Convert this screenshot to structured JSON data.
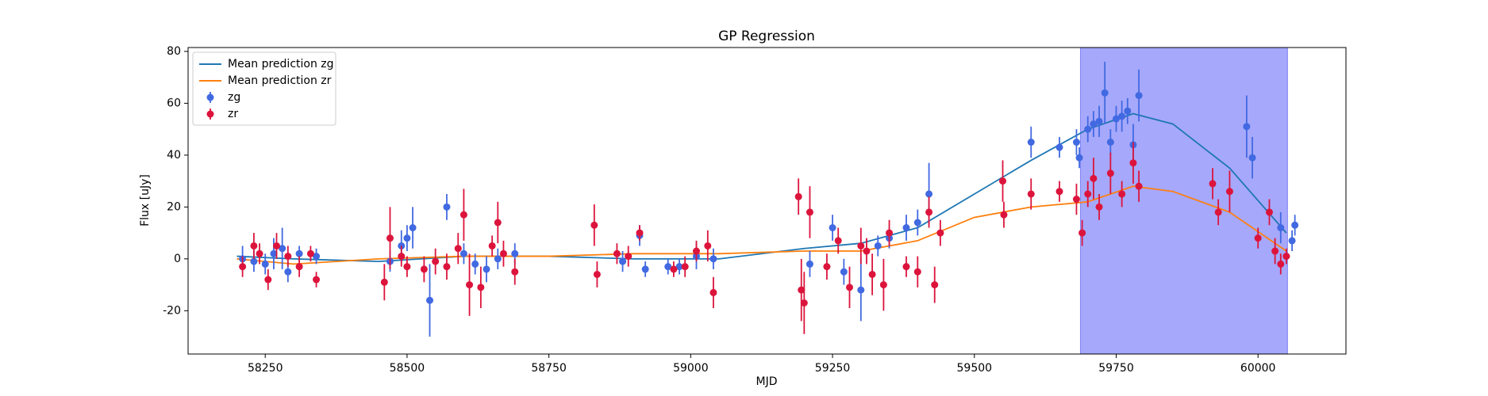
{
  "chart_data": {
    "type": "line",
    "title": "GP Regression",
    "x_label": "MJD",
    "y_label": "Flux [uJy]",
    "xlim": [
      58114,
      60155
    ],
    "ylim": [
      -36.7,
      81.5
    ],
    "xticks": [
      58250,
      58500,
      58750,
      59000,
      59250,
      59500,
      59750,
      60000
    ],
    "yticks": [
      -20,
      0,
      20,
      40,
      60,
      80
    ],
    "grid": false,
    "legend": "upper left",
    "shaded_span": {
      "x": [
        59687,
        60052
      ],
      "color": "#a6a8fb"
    },
    "series": [
      {
        "name": "Mean prediction zg",
        "type": "line",
        "color": "#1f77b4",
        "x": [
          58200,
          58300,
          58450,
          58600,
          58750,
          58900,
          59050,
          59200,
          59300,
          59400,
          59500,
          59600,
          59700,
          59780,
          59850,
          59950,
          60050
        ],
        "values": [
          1,
          0,
          -1,
          1,
          1,
          0,
          0,
          4,
          6,
          12,
          25,
          38,
          50,
          56,
          52,
          35,
          10
        ]
      },
      {
        "name": "Mean prediction zr",
        "type": "line",
        "color": "#ff7f0e",
        "x": [
          58200,
          58300,
          58450,
          58600,
          58750,
          58900,
          59050,
          59200,
          59300,
          59400,
          59500,
          59600,
          59700,
          59780,
          59850,
          59950,
          60050
        ],
        "values": [
          0,
          -2,
          0,
          1,
          1,
          2,
          2,
          3,
          3,
          7,
          16,
          20,
          22,
          28,
          26,
          18,
          3
        ]
      },
      {
        "name": "zg",
        "type": "scatter",
        "color": "#4169e1",
        "x": [
          58210,
          58230,
          58250,
          58265,
          58280,
          58290,
          58310,
          58340,
          58470,
          58490,
          58500,
          58510,
          58540,
          58570,
          58600,
          58620,
          58640,
          58660,
          58690,
          58880,
          58910,
          58920,
          58960,
          58980,
          59010,
          59040,
          59210,
          59250,
          59270,
          59300,
          59330,
          59350,
          59380,
          59400,
          59420,
          59600,
          59650,
          59680,
          59685,
          59700,
          59710,
          59720,
          59730,
          59740,
          59750,
          59760,
          59770,
          59780,
          59790,
          59980,
          59990,
          60040,
          60060,
          60065
        ],
        "values": [
          0,
          -1,
          -2,
          2,
          4,
          -5,
          2,
          1,
          -1,
          5,
          8,
          12,
          -16,
          20,
          2,
          -2,
          -4,
          0,
          2,
          -1,
          9,
          -4,
          -3,
          -3,
          1,
          0,
          -2,
          12,
          -5,
          -12,
          5,
          8,
          12,
          14,
          25,
          45,
          43,
          45,
          39,
          50,
          52,
          53,
          64,
          45,
          54,
          55,
          57,
          44,
          63,
          51,
          39,
          12,
          7,
          13
        ],
        "errors": [
          5,
          4,
          4,
          6,
          8,
          4,
          3,
          3,
          4,
          6,
          5,
          8,
          14,
          5,
          4,
          4,
          5,
          4,
          4,
          4,
          4,
          3,
          3,
          3,
          5,
          4,
          5,
          5,
          5,
          12,
          4,
          4,
          5,
          5,
          12,
          6,
          4,
          5,
          4,
          5,
          5,
          6,
          12,
          5,
          5,
          6,
          5,
          8,
          10,
          12,
          8,
          6,
          4,
          4
        ]
      },
      {
        "name": "zr",
        "type": "scatter",
        "color": "#dc143c",
        "x": [
          58210,
          58230,
          58240,
          58255,
          58270,
          58290,
          58310,
          58330,
          58340,
          58460,
          58470,
          58490,
          58500,
          58530,
          58550,
          58570,
          58590,
          58600,
          58610,
          58630,
          58650,
          58660,
          58670,
          58690,
          58830,
          58835,
          58870,
          58890,
          58910,
          58970,
          58990,
          59010,
          59030,
          59040,
          59190,
          59195,
          59200,
          59210,
          59240,
          59260,
          59280,
          59300,
          59310,
          59320,
          59340,
          59350,
          59380,
          59400,
          59420,
          59430,
          59440,
          59550,
          59552,
          59600,
          59650,
          59680,
          59690,
          59700,
          59710,
          59720,
          59740,
          59760,
          59780,
          59790,
          59920,
          59930,
          59950,
          60000,
          60020,
          60030,
          60040,
          60050
        ],
        "values": [
          -3,
          5,
          2,
          -8,
          5,
          1,
          -3,
          2,
          -8,
          -9,
          8,
          1,
          -3,
          -4,
          -1,
          -3,
          4,
          17,
          -10,
          -11,
          5,
          14,
          2,
          -5,
          13,
          -6,
          2,
          1,
          10,
          -4,
          -3,
          3,
          5,
          -13,
          24,
          -12,
          -17,
          18,
          -3,
          7,
          -11,
          5,
          3,
          -6,
          -10,
          10,
          -3,
          -5,
          18,
          -10,
          10,
          30,
          17,
          25,
          26,
          23,
          10,
          25,
          31,
          20,
          33,
          25,
          37,
          28,
          29,
          18,
          26,
          8,
          18,
          3,
          -2,
          1
        ],
        "errors": [
          4,
          5,
          4,
          4,
          5,
          4,
          4,
          3,
          3,
          7,
          12,
          4,
          4,
          5,
          5,
          5,
          6,
          10,
          12,
          8,
          4,
          8,
          5,
          5,
          8,
          5,
          4,
          4,
          3,
          3,
          4,
          4,
          6,
          6,
          7,
          12,
          12,
          10,
          5,
          5,
          8,
          7,
          5,
          8,
          10,
          5,
          4,
          6,
          6,
          7,
          5,
          8,
          5,
          6,
          4,
          6,
          5,
          5,
          8,
          5,
          8,
          5,
          8,
          6,
          6,
          5,
          8,
          4,
          5,
          5,
          4,
          3
        ]
      }
    ]
  }
}
